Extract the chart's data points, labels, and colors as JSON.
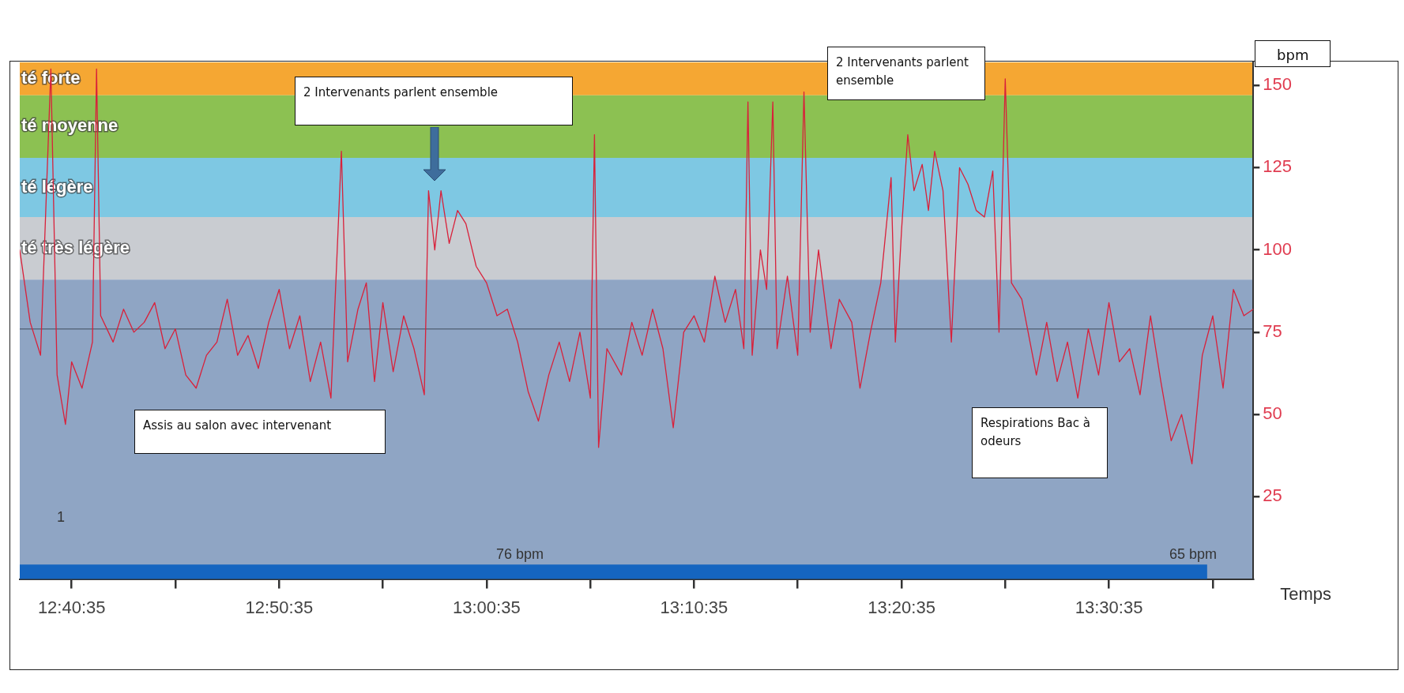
{
  "chart_data": {
    "type": "line",
    "xlabel": "Temps",
    "ylabel": "bpm",
    "xlim": [
      12.6347,
      13.6257
    ],
    "xticks": [
      {
        "value": 12.6764,
        "label": "12:40:35"
      },
      {
        "value": 12.7597,
        "label": null
      },
      {
        "value": 12.8431,
        "label": "12:50:35"
      },
      {
        "value": 12.9264,
        "label": null
      },
      {
        "value": 13.0097,
        "label": "13:00:35"
      },
      {
        "value": 13.0931,
        "label": null
      },
      {
        "value": 13.1764,
        "label": "13:10:35"
      },
      {
        "value": 13.2597,
        "label": null
      },
      {
        "value": 13.3431,
        "label": "13:20:35"
      },
      {
        "value": 13.4264,
        "label": null
      },
      {
        "value": 13.5097,
        "label": "13:30:35"
      },
      {
        "value": 13.5931,
        "label": null
      }
    ],
    "ylim": [
      0,
      157
    ],
    "yticks": [
      25,
      50,
      75,
      100,
      125,
      150
    ],
    "grid": false,
    "legend": false,
    "marker": "none",
    "line_style": "solid",
    "bands": [
      {
        "axis": "y",
        "from": 147,
        "to": 157,
        "label": "té forte",
        "color": "#f5a733"
      },
      {
        "axis": "y",
        "from": 128,
        "to": 147,
        "label": "té moyenne",
        "color": "#8cc152"
      },
      {
        "axis": "y",
        "from": 110,
        "to": 128,
        "label": "té légère",
        "color": "#7ec8e3"
      },
      {
        "axis": "y",
        "from": 91,
        "to": 110,
        "label": "té très légère",
        "color": "#c9ccd1"
      },
      {
        "axis": "y",
        "from": 0,
        "to": 91,
        "label": null,
        "color": "#8fa5c4"
      }
    ],
    "ref_lines": [
      {
        "axis": "y",
        "value": 76,
        "label": null,
        "color": "#5a6b80"
      }
    ],
    "annotations": [
      "2 Intervenants parlent ensemble",
      "2 Intervenants parlent ensemble",
      "Assis au salon avec intervenant",
      "Respirations Bac à odeurs",
      "76 bpm",
      "65 bpm",
      "1"
    ],
    "series": [
      {
        "color": "#d9203a",
        "x": [
          12.6347,
          12.6431,
          12.6514,
          12.6597,
          12.6647,
          12.6714,
          12.6764,
          12.6847,
          12.6931,
          12.6964,
          12.6997,
          12.7097,
          12.7181,
          12.7264,
          12.7347,
          12.7431,
          12.7514,
          12.7597,
          12.7681,
          12.7764,
          12.7847,
          12.7931,
          12.8014,
          12.8097,
          12.8181,
          12.8264,
          12.8347,
          12.8431,
          12.8514,
          12.8597,
          12.8681,
          12.8764,
          12.8847,
          12.8931,
          12.8981,
          12.9064,
          12.9131,
          12.9197,
          12.9264,
          12.9347,
          12.9431,
          12.9514,
          12.9597,
          12.9631,
          12.9681,
          12.9731,
          12.9797,
          12.9864,
          12.9931,
          13.0014,
          13.0097,
          13.0181,
          13.0264,
          13.0347,
          13.0431,
          13.0514,
          13.0597,
          13.0681,
          13.0764,
          13.0847,
          13.0931,
          13.0964,
          13.0997,
          13.1064,
          13.1181,
          13.1264,
          13.1347,
          13.1431,
          13.1514,
          13.1597,
          13.1681,
          13.1764,
          13.1847,
          13.1931,
          13.2014,
          13.2097,
          13.2164,
          13.2197,
          13.2231,
          13.2297,
          13.2347,
          13.2397,
          13.2431,
          13.2514,
          13.2597,
          13.2647,
          13.2697,
          13.2764,
          13.2864,
          13.2931,
          13.3031,
          13.3097,
          13.3181,
          13.3264,
          13.3347,
          13.3381,
          13.3431,
          13.3481,
          13.3531,
          13.3597,
          13.3647,
          13.3697,
          13.3764,
          13.3831,
          13.3897,
          13.3964,
          13.4031,
          13.4097,
          13.4164,
          13.4214,
          13.4264,
          13.4314,
          13.4397,
          13.4514,
          13.4597,
          13.4681,
          13.4764,
          13.4847,
          13.4931,
          13.5014,
          13.5097,
          13.5181,
          13.5264,
          13.5347,
          13.5431,
          13.5514,
          13.5597,
          13.5681,
          13.5764,
          13.5847,
          13.5931,
          13.6014,
          13.6097,
          13.6181,
          13.6257
        ],
        "values": [
          100,
          78,
          68,
          155,
          62,
          47,
          66,
          58,
          72,
          155,
          80,
          72,
          82,
          75,
          78,
          84,
          70,
          76,
          62,
          58,
          68,
          72,
          85,
          68,
          74,
          64,
          78,
          88,
          70,
          80,
          60,
          72,
          55,
          130,
          66,
          82,
          90,
          60,
          84,
          63,
          80,
          70,
          56,
          118,
          100,
          118,
          102,
          112,
          108,
          95,
          90,
          80,
          82,
          72,
          57,
          48,
          62,
          72,
          60,
          75,
          55,
          135,
          40,
          70,
          62,
          78,
          68,
          82,
          70,
          46,
          75,
          80,
          72,
          92,
          78,
          88,
          70,
          145,
          68,
          100,
          88,
          145,
          70,
          92,
          68,
          148,
          75,
          100,
          70,
          85,
          78,
          58,
          75,
          90,
          122,
          72,
          106,
          135,
          118,
          126,
          112,
          130,
          118,
          72,
          125,
          120,
          112,
          110,
          124,
          75,
          152,
          90,
          85,
          62,
          78,
          60,
          72,
          55,
          76,
          62,
          84,
          66,
          70,
          56,
          80,
          60,
          42,
          50,
          35,
          68,
          80,
          58,
          88,
          80,
          82
        ]
      },
      {
        "color": "#1565c0",
        "x": [
          12.6347,
          13.5886
        ],
        "values": [
          2,
          2
        ]
      }
    ]
  }
}
